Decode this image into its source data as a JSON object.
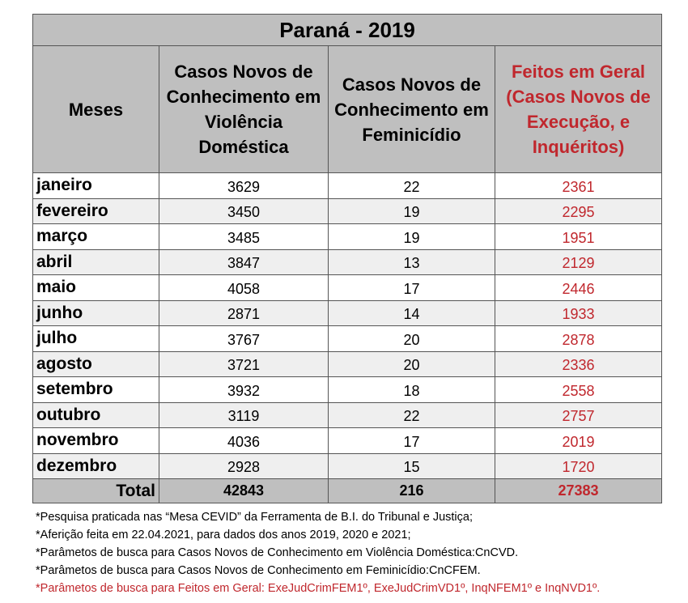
{
  "title": "Paraná - 2019",
  "headers": {
    "months": "Meses",
    "violence": "Casos Novos de Conhecimento em Violência Doméstica",
    "femicide": "Casos Novos de Conhecimento em Feminicídio",
    "general": "Feitos em Geral (Casos Novos de Execução, e Inquéritos)"
  },
  "rows": [
    {
      "month": "janeiro",
      "violence": "3629",
      "femicide": "22",
      "general": "2361"
    },
    {
      "month": "fevereiro",
      "violence": "3450",
      "femicide": "19",
      "general": "2295"
    },
    {
      "month": "março",
      "violence": "3485",
      "femicide": "19",
      "general": "1951"
    },
    {
      "month": "abril",
      "violence": "3847",
      "femicide": "13",
      "general": "2129"
    },
    {
      "month": "maio",
      "violence": "4058",
      "femicide": "17",
      "general": "2446"
    },
    {
      "month": "junho",
      "violence": "2871",
      "femicide": "14",
      "general": "1933"
    },
    {
      "month": "julho",
      "violence": "3767",
      "femicide": "20",
      "general": "2878"
    },
    {
      "month": "agosto",
      "violence": "3721",
      "femicide": "20",
      "general": "2336"
    },
    {
      "month": "setembro",
      "violence": "3932",
      "femicide": "18",
      "general": "2558"
    },
    {
      "month": "outubro",
      "violence": "3119",
      "femicide": "22",
      "general": "2757"
    },
    {
      "month": "novembro",
      "violence": "4036",
      "femicide": "17",
      "general": "2019"
    },
    {
      "month": "dezembro",
      "violence": "2928",
      "femicide": "15",
      "general": "1720"
    }
  ],
  "total": {
    "label": "Total",
    "violence": "42843",
    "femicide": "216",
    "general": "27383"
  },
  "notes": [
    "*Pesquisa praticada nas “Mesa CEVID” da Ferramenta de B.I. do Tribunal e Justiça;",
    "*Aferição feita em 22.04.2021, para dados dos anos 2019, 2020 e 2021;",
    "*Parâmetos de busca para Casos Novos de Conhecimento em Violência Doméstica:CnCVD.",
    "*Parâmetos de busca para Casos Novos de Conhecimento em Feminicídio:CnCFEM.",
    "*Parâmetos de busca para Feitos em Geral: ExeJudCrimFEM1º, ExeJudCrimVD1º, InqNFEM1º e InqNVD1º."
  ],
  "colors": {
    "header_bg": "#bfbfbf",
    "accent_red": "#c0272d",
    "stripe": "#efefef"
  }
}
